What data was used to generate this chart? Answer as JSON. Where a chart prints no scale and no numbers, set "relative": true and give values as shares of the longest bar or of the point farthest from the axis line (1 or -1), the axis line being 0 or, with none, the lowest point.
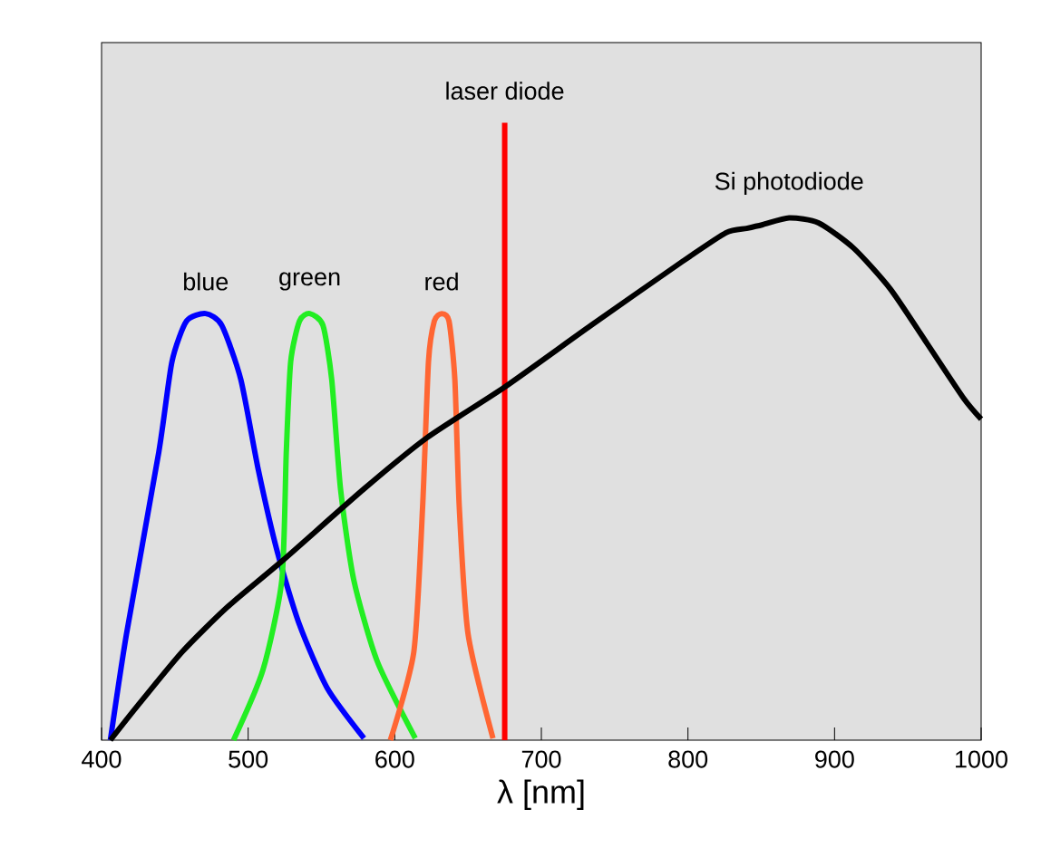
{
  "chart_data": {
    "type": "line",
    "relative": true,
    "xlabel": "λ [nm]",
    "xlim": [
      400,
      1000
    ],
    "xticks": [
      400,
      500,
      600,
      700,
      800,
      900,
      1000
    ],
    "line_style": "solid",
    "marker": "none",
    "series": [
      {
        "name": "blue",
        "color": "#0000ff",
        "x": [
          406,
          417,
          439,
          448,
          458,
          471,
          482,
          495,
          507,
          520,
          535,
          554,
          579
        ],
        "values": [
          0,
          0.172,
          0.466,
          0.613,
          0.679,
          0.691,
          0.672,
          0.584,
          0.437,
          0.304,
          0.187,
          0.084,
          0.003
        ]
      },
      {
        "name": "green",
        "color": "#22ee22",
        "x": [
          490,
          510,
          523,
          526,
          529,
          535,
          542,
          551,
          557,
          563,
          572,
          588,
          614
        ],
        "values": [
          0,
          0.113,
          0.26,
          0.466,
          0.613,
          0.679,
          0.691,
          0.672,
          0.584,
          0.407,
          0.26,
          0.128,
          0.003
        ]
      },
      {
        "name": "red",
        "color": "#ff6633",
        "x": [
          597,
          613,
          619,
          623,
          627,
          632,
          637,
          641,
          644,
          650,
          667
        ],
        "values": [
          0,
          0.143,
          0.378,
          0.613,
          0.679,
          0.691,
          0.679,
          0.584,
          0.378,
          0.172,
          0.003
        ]
      },
      {
        "name": "laser diode",
        "color": "#ff0000",
        "x": [
          675,
          675
        ],
        "values": [
          0,
          1
        ]
      },
      {
        "name": "Si photodiode",
        "color": "#000000",
        "x": [
          406,
          424,
          455,
          486,
          523,
          579,
          622,
          675,
          734,
          796,
          826,
          840,
          851,
          869,
          889,
          913,
          938,
          963,
          988,
          1000
        ],
        "values": [
          0,
          0.054,
          0.143,
          0.216,
          0.29,
          0.407,
          0.49,
          0.572,
          0.672,
          0.775,
          0.822,
          0.829,
          0.835,
          0.846,
          0.838,
          0.797,
          0.731,
          0.643,
          0.554,
          0.52
        ]
      }
    ]
  }
}
